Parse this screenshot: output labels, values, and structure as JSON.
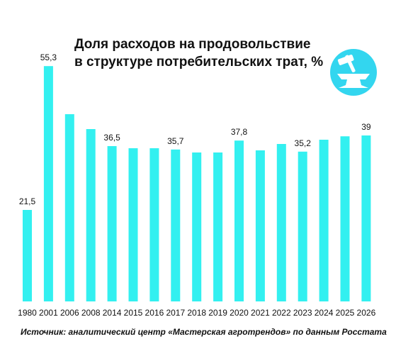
{
  "title_lines": [
    "Доля расходов на продовольствие",
    "в структуре потребительских трат, %"
  ],
  "source": "Источник: аналитический центр «Мастерская агротрендов» по данным Росстата",
  "logo": {
    "icon": "anvil-hammer-icon",
    "bg_color": "#33d6ef",
    "fg_color": "#ffffff"
  },
  "chart_data": {
    "type": "bar",
    "bar_color": "#33f0f0",
    "categories": [
      "1980",
      "2001",
      "2006",
      "2008",
      "2014",
      "2015",
      "2016",
      "2017",
      "2018",
      "2019",
      "2020",
      "2021",
      "2022",
      "2023",
      "2024",
      "2025",
      "2026"
    ],
    "values": [
      21.5,
      55.3,
      44,
      40.5,
      36.5,
      36,
      36,
      35.7,
      35,
      35,
      37.8,
      35.5,
      37,
      35.2,
      38,
      38.8,
      39
    ],
    "data_labels": [
      "21,5",
      "55,3",
      "",
      "",
      "36,5",
      "",
      "",
      "35,7",
      "",
      "",
      "37,8",
      "",
      "",
      "35,2",
      "",
      "",
      "39"
    ],
    "ylim": [
      0,
      60
    ],
    "grid": false,
    "legend": "none"
  }
}
